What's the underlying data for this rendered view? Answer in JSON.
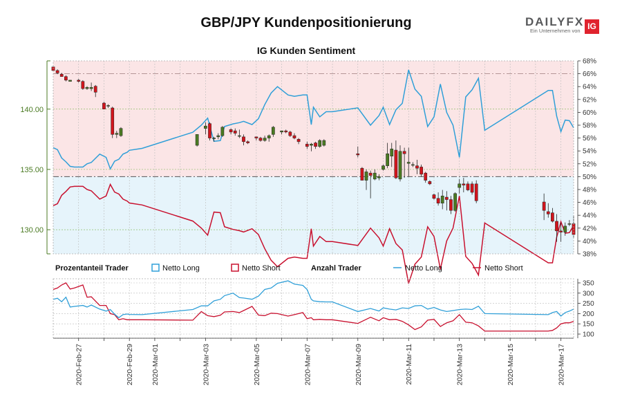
{
  "title": "GBP/JPY Kundenpositionierung",
  "subtitle": "IG Kunden Sentiment",
  "logo": {
    "word_a": "DAILY",
    "word_b": "FX",
    "tagline": "Ein Unternehmen von",
    "badge": "IG"
  },
  "legend": {
    "group1": "Prozentanteil Trader",
    "group1_long": "Netto Long",
    "group1_short": "Netto Short",
    "group2": "Anzahl Trader",
    "group2_long": "Netto Long",
    "group2_short": "Netto Short"
  },
  "colors": {
    "long": "#2f9fd8",
    "short": "#c8102e",
    "long_area": "#e6f4fb",
    "short_area": "#fbe5e6",
    "bull": "#4a7a22",
    "bear": "#d2141c",
    "price_axis": "#4a7a22"
  },
  "chart_data": [
    {
      "type": "candlestick",
      "name": "GBP/JPY",
      "ylim": [
        128,
        144
      ],
      "y_ticks": [
        130,
        135,
        140
      ],
      "y_tick_labels": [
        "130.00",
        "135.00",
        "140.00"
      ],
      "xlim": [
        "2020-02-26",
        "2020-03-17T12:00"
      ],
      "candles": [
        [
          "2020-02-26T00:00",
          143.5,
          143.5,
          143.2,
          143.2
        ],
        [
          "2020-02-26T04:00",
          143.2,
          143.3,
          142.9,
          143.0
        ],
        [
          "2020-02-26T08:00",
          142.9,
          143.0,
          142.7,
          142.7
        ],
        [
          "2020-02-26T12:00",
          142.7,
          142.8,
          142.3,
          142.4
        ],
        [
          "2020-02-26T16:00",
          142.3,
          142.4,
          142.3,
          142.4
        ],
        [
          "2020-02-27T00:00",
          142.4,
          142.5,
          142.2,
          142.3
        ],
        [
          "2020-02-27T04:00",
          142.3,
          142.4,
          141.6,
          141.7
        ],
        [
          "2020-02-27T08:00",
          141.7,
          141.9,
          141.6,
          141.8
        ],
        [
          "2020-02-27T12:00",
          141.7,
          142.2,
          141.5,
          141.8
        ],
        [
          "2020-02-27T16:00",
          141.9,
          142.0,
          141.0,
          141.4
        ],
        [
          "2020-02-28T00:00",
          140.5,
          140.6,
          140.0,
          140.0
        ],
        [
          "2020-02-28T04:00",
          140.3,
          140.4,
          140.1,
          140.3
        ],
        [
          "2020-02-28T08:00",
          140.1,
          140.2,
          137.6,
          137.9
        ],
        [
          "2020-02-28T12:00",
          137.9,
          138.2,
          137.6,
          138.0
        ],
        [
          "2020-02-28T16:00",
          137.8,
          138.5,
          137.7,
          138.4
        ],
        [
          "2020-03-02T16:00",
          137.0,
          137.9,
          136.9,
          137.9
        ],
        [
          "2020-03-03T00:00",
          138.4,
          138.9,
          137.9,
          138.6
        ],
        [
          "2020-03-03T04:00",
          138.8,
          138.9,
          137.4,
          137.6
        ],
        [
          "2020-03-03T08:00",
          137.6,
          137.7,
          137.3,
          137.6
        ],
        [
          "2020-03-03T12:00",
          137.7,
          138.0,
          137.5,
          137.8
        ],
        [
          "2020-03-03T16:00",
          137.8,
          138.6,
          137.7,
          138.5
        ],
        [
          "2020-03-04T00:00",
          138.3,
          138.4,
          137.9,
          138.1
        ],
        [
          "2020-03-04T04:00",
          138.2,
          138.4,
          137.8,
          138.0
        ],
        [
          "2020-03-04T08:00",
          137.8,
          138.3,
          137.6,
          137.8
        ],
        [
          "2020-03-04T12:00",
          137.7,
          137.9,
          137.0,
          137.3
        ],
        [
          "2020-03-04T16:00",
          137.3,
          137.4,
          137.1,
          137.2
        ],
        [
          "2020-03-05T00:00",
          137.7,
          137.7,
          137.4,
          137.6
        ],
        [
          "2020-03-05T04:00",
          137.6,
          137.7,
          137.3,
          137.4
        ],
        [
          "2020-03-05T08:00",
          137.4,
          137.8,
          137.3,
          137.6
        ],
        [
          "2020-03-05T12:00",
          137.6,
          137.9,
          137.3,
          137.8
        ],
        [
          "2020-03-05T16:00",
          137.9,
          138.6,
          137.7,
          138.5
        ],
        [
          "2020-03-06T00:00",
          138.1,
          138.2,
          137.9,
          138.2
        ],
        [
          "2020-03-06T04:00",
          138.2,
          138.3,
          138.0,
          138.1
        ],
        [
          "2020-03-06T08:00",
          138.1,
          138.2,
          137.7,
          137.8
        ],
        [
          "2020-03-06T12:00",
          137.8,
          138.0,
          137.5,
          137.6
        ],
        [
          "2020-03-06T16:00",
          137.5,
          137.6,
          137.1,
          137.3
        ],
        [
          "2020-03-07T00:00",
          137.1,
          137.3,
          136.7,
          136.9
        ],
        [
          "2020-03-07T04:00",
          137.0,
          137.2,
          136.5,
          137.1
        ],
        [
          "2020-03-07T08:00",
          137.2,
          137.3,
          136.7,
          136.9
        ],
        [
          "2020-03-07T12:00",
          136.9,
          137.5,
          136.8,
          137.4
        ],
        [
          "2020-03-07T16:00",
          137.0,
          137.5,
          136.9,
          137.4
        ],
        [
          "2020-03-09T00:00",
          136.3,
          136.9,
          136.0,
          136.2
        ],
        [
          "2020-03-09T04:00",
          135.1,
          135.2,
          134.1,
          134.1
        ],
        [
          "2020-03-09T08:00",
          134.1,
          135.0,
          133.3,
          134.8
        ],
        [
          "2020-03-09T12:00",
          134.7,
          134.9,
          132.6,
          134.5
        ],
        [
          "2020-03-09T16:00",
          134.2,
          135.0,
          134.1,
          134.7
        ],
        [
          "2020-03-09T20:00",
          134.3,
          134.6,
          134.1,
          134.4
        ],
        [
          "2020-03-10T00:00",
          135.0,
          135.4,
          134.9,
          135.3
        ],
        [
          "2020-03-10T04:00",
          135.3,
          137.2,
          135.1,
          136.3
        ],
        [
          "2020-03-10T08:00",
          136.1,
          137.2,
          135.2,
          136.7
        ],
        [
          "2020-03-10T12:00",
          136.6,
          137.4,
          134.2,
          134.3
        ],
        [
          "2020-03-10T16:00",
          134.2,
          137.0,
          134.0,
          136.5
        ],
        [
          "2020-03-10T20:00",
          136.5,
          136.8,
          134.3,
          136.3
        ],
        [
          "2020-03-11T00:00",
          135.5,
          136.8,
          134.4,
          135.6
        ],
        [
          "2020-03-11T04:00",
          135.4,
          135.6,
          135.2,
          135.4
        ],
        [
          "2020-03-11T08:00",
          135.3,
          135.8,
          134.6,
          135.1
        ],
        [
          "2020-03-11T12:00",
          135.2,
          135.4,
          134.4,
          134.6
        ],
        [
          "2020-03-11T16:00",
          134.7,
          134.8,
          133.9,
          134.1
        ],
        [
          "2020-03-11T20:00",
          134.0,
          134.1,
          133.7,
          133.8
        ],
        [
          "2020-03-12T00:00",
          132.9,
          133.0,
          132.5,
          132.6
        ],
        [
          "2020-03-12T04:00",
          132.6,
          133.1,
          132.0,
          132.2
        ],
        [
          "2020-03-12T08:00",
          132.2,
          133.3,
          131.7,
          132.8
        ],
        [
          "2020-03-12T12:00",
          132.7,
          133.2,
          131.6,
          132.5
        ],
        [
          "2020-03-12T16:00",
          132.5,
          132.8,
          131.3,
          131.6
        ],
        [
          "2020-03-12T20:00",
          131.6,
          133.1,
          131.5,
          133.0
        ],
        [
          "2020-03-13T00:00",
          133.5,
          134.2,
          133.0,
          133.8
        ],
        [
          "2020-03-13T04:00",
          133.8,
          134.3,
          133.1,
          133.7
        ],
        [
          "2020-03-13T08:00",
          133.8,
          134.0,
          133.2,
          133.3
        ],
        [
          "2020-03-13T12:00",
          133.8,
          134.0,
          132.9,
          133.1
        ],
        [
          "2020-03-13T16:00",
          133.8,
          134.1,
          132.2,
          132.4
        ],
        [
          "2020-03-16T08:00",
          132.3,
          133.0,
          130.8,
          131.6
        ],
        [
          "2020-03-16T12:00",
          131.5,
          132.2,
          131.0,
          131.3
        ],
        [
          "2020-03-16T16:00",
          131.4,
          131.8,
          130.6,
          130.7
        ],
        [
          "2020-03-16T20:00",
          130.7,
          131.3,
          129.0,
          129.9
        ],
        [
          "2020-03-17T00:00",
          129.9,
          130.6,
          129.0,
          129.8
        ],
        [
          "2020-03-17T04:00",
          129.8,
          130.6,
          129.5,
          130.3
        ],
        [
          "2020-03-17T08:00",
          130.5,
          130.8,
          130.3,
          130.5
        ],
        [
          "2020-03-17T12:00",
          130.5,
          131.2,
          129.3,
          129.6
        ]
      ]
    },
    {
      "type": "area",
      "name": "Prozentanteil Trader",
      "ylim": [
        38,
        68
      ],
      "y_ticks": [
        38,
        40,
        42,
        44,
        46,
        48,
        50,
        52,
        54,
        56,
        58,
        60,
        62,
        64,
        66,
        68
      ],
      "y_tick_labels": [
        "38%",
        "40%",
        "42%",
        "44%",
        "46%",
        "48%",
        "50%",
        "52%",
        "54%",
        "56%",
        "58%",
        "60%",
        "62%",
        "64%",
        "66%",
        "68%"
      ],
      "reference_lines": [
        50,
        66
      ],
      "x": [
        "2020-02-26T00:00",
        "2020-02-26T04:00",
        "2020-02-26T08:00",
        "2020-02-26T12:00",
        "2020-02-26T16:00",
        "2020-02-26T20:00",
        "2020-02-27T04:00",
        "2020-02-27T08:00",
        "2020-02-27T12:00",
        "2020-02-27T20:00",
        "2020-02-28T02:00",
        "2020-02-28T06:00",
        "2020-02-28T10:00",
        "2020-02-28T14:00",
        "2020-02-28T18:00",
        "2020-02-28T22:00",
        "2020-02-29T00:00",
        "2020-02-29T12:00",
        "2020-03-02T12:00",
        "2020-03-02T20:00",
        "2020-03-03T02:00",
        "2020-03-03T08:00",
        "2020-03-03T14:00",
        "2020-03-03T18:00",
        "2020-03-04T02:00",
        "2020-03-04T08:00",
        "2020-03-04T12:00",
        "2020-03-04T20:00",
        "2020-03-05T02:00",
        "2020-03-05T08:00",
        "2020-03-05T14:00",
        "2020-03-05T20:00",
        "2020-03-06T06:00",
        "2020-03-06T12:00",
        "2020-03-06T20:00",
        "2020-03-07T00:00",
        "2020-03-07T04:00",
        "2020-03-07T06:00",
        "2020-03-07T12:00",
        "2020-03-07T18:00",
        "2020-03-08T00:00",
        "2020-03-09T00:00",
        "2020-03-09T12:00",
        "2020-03-09T20:00",
        "2020-03-10T00:00",
        "2020-03-10T06:00",
        "2020-03-10T12:00",
        "2020-03-10T18:00",
        "2020-03-11T00:00",
        "2020-03-11T06:00",
        "2020-03-11T12:00",
        "2020-03-11T18:00",
        "2020-03-12T00:00",
        "2020-03-12T06:00",
        "2020-03-12T12:00",
        "2020-03-12T18:00",
        "2020-03-13T00:00",
        "2020-03-13T06:00",
        "2020-03-13T12:00",
        "2020-03-13T18:00",
        "2020-03-14T00:00",
        "2020-03-16T12:00",
        "2020-03-16T16:00",
        "2020-03-16T20:00",
        "2020-03-17T00:00",
        "2020-03-17T04:00",
        "2020-03-17T08:00",
        "2020-03-17T12:00"
      ],
      "series": [
        {
          "name": "Netto Long",
          "values": [
            54.5,
            54.2,
            52.9,
            52.3,
            51.6,
            51.5,
            51.5,
            52.0,
            52.2,
            53.5,
            53.0,
            51.2,
            52.4,
            52.7,
            53.5,
            53.8,
            54.1,
            54.4,
            56.9,
            58.0,
            59.1,
            55.5,
            55.6,
            57.8,
            58.2,
            58.4,
            58.6,
            58.1,
            59.0,
            61.2,
            63.0,
            64.0,
            62.7,
            62.5,
            62.7,
            62.7,
            58.1,
            60.8,
            59.3,
            60.1,
            60.1,
            60.7,
            58.0,
            59.5,
            60.8,
            58.1,
            60.4,
            61.4,
            66.6,
            63.6,
            62.5,
            57.8,
            59.3,
            64.4,
            60.0,
            58.0,
            53.0,
            62.4,
            63.5,
            65.3,
            57.2,
            63.4,
            63.4,
            59.4,
            57.0,
            58.8,
            58.7,
            57.6
          ]
        },
        {
          "name": "Netto Short",
          "values": [
            45.5,
            45.8,
            47.1,
            47.7,
            48.4,
            48.5,
            48.5,
            48.0,
            47.8,
            46.5,
            47.0,
            48.8,
            47.6,
            47.3,
            46.5,
            46.2,
            45.9,
            45.6,
            43.1,
            42.0,
            40.9,
            44.5,
            44.4,
            42.2,
            41.8,
            41.6,
            41.4,
            41.9,
            41.0,
            38.8,
            37.0,
            36.0,
            37.3,
            37.5,
            37.3,
            37.3,
            41.9,
            39.2,
            40.7,
            39.9,
            39.9,
            39.3,
            42.0,
            40.5,
            39.2,
            41.9,
            39.6,
            38.6,
            33.4,
            36.4,
            37.5,
            42.2,
            40.7,
            35.6,
            40.0,
            42.0,
            47.0,
            37.6,
            36.5,
            34.7,
            42.8,
            36.6,
            36.6,
            40.6,
            43.0,
            41.2,
            41.3,
            42.4
          ]
        }
      ]
    },
    {
      "type": "line",
      "name": "Anzahl Trader",
      "ylim": [
        100,
        350
      ],
      "y_ticks": [
        100,
        150,
        200,
        250,
        300,
        350
      ],
      "y_tick_labels": [
        "100",
        "150",
        "200",
        "250",
        "300",
        "350"
      ],
      "series": [
        {
          "name": "Netto Long",
          "values": [
            270,
            275,
            258,
            280,
            232,
            235,
            240,
            232,
            242,
            222,
            212,
            220,
            197,
            180,
            195,
            198,
            196,
            195,
            220,
            238,
            238,
            262,
            270,
            288,
            300,
            278,
            276,
            270,
            285,
            318,
            325,
            348,
            360,
            344,
            338,
            318,
            270,
            262,
            258,
            257,
            257,
            210,
            225,
            213,
            228,
            222,
            218,
            228,
            225,
            238,
            240,
            222,
            230,
            218,
            210,
            215,
            220,
            222,
            220,
            236,
            200,
            195,
            205,
            210,
            188,
            205,
            212,
            222
          ]
        },
        {
          "name": "Netto Short",
          "values": [
            318,
            325,
            340,
            350,
            320,
            325,
            340,
            280,
            282,
            240,
            240,
            200,
            195,
            170,
            175,
            170,
            170,
            170,
            168,
            210,
            190,
            185,
            192,
            208,
            210,
            205,
            215,
            235,
            193,
            190,
            202,
            200,
            188,
            195,
            205,
            175,
            180,
            170,
            172,
            170,
            170,
            152,
            182,
            165,
            180,
            170,
            172,
            162,
            145,
            122,
            135,
            168,
            172,
            137,
            155,
            165,
            195,
            158,
            155,
            140,
            115,
            115,
            118,
            130,
            150,
            155,
            155,
            162
          ]
        }
      ]
    }
  ],
  "x_tick_labels": [
    "2020-Feb-27",
    "2020-Feb-29",
    "2020-Mar-01",
    "2020-Mar-03",
    "2020-Mar-05",
    "2020-Mar-07",
    "2020-Mar-09",
    "2020-Mar-11",
    "2020-Mar-13",
    "2020-Mar-15",
    "2020-Mar-17"
  ]
}
